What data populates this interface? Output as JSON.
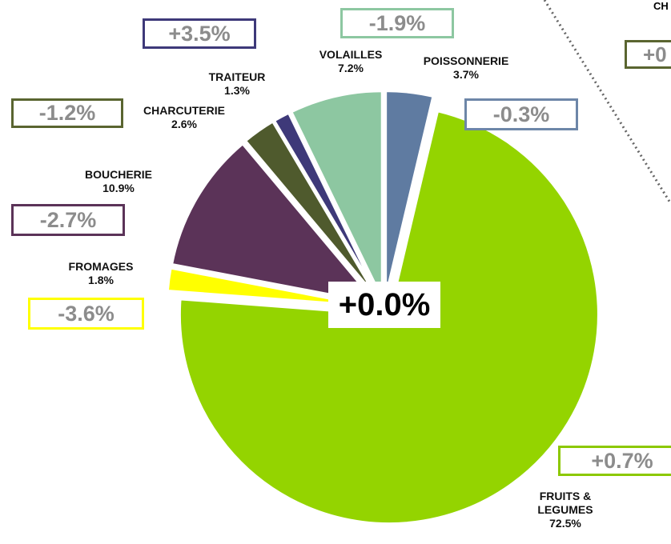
{
  "chart_data": {
    "type": "pie",
    "categories": [
      "POISSONNERIE",
      "FRUITS & LEGUMES",
      "FROMAGES",
      "BOUCHERIE",
      "CHARCUTERIE",
      "TRAITEUR",
      "VOLAILLES"
    ],
    "values": [
      3.7,
      72.5,
      1.8,
      10.9,
      2.6,
      1.3,
      7.2
    ],
    "value_labels": [
      "3.7%",
      "72.5%",
      "1.8%",
      "10.9%",
      "2.6%",
      "1.3%",
      "7.2%"
    ],
    "colors": [
      "#5f7ba1",
      "#94d400",
      "#ffff00",
      "#5b3358",
      "#4f5a2d",
      "#3e3979",
      "#8dc7a1"
    ],
    "change_labels": [
      "-0.3%",
      "+0.7%",
      "-3.6%",
      "-2.7%",
      "-1.2%",
      "+3.5%",
      "-1.9%"
    ],
    "change_border_colors": [
      "#6d86a8",
      "#8cc800",
      "#ffff00",
      "#5b3358",
      "#5a6530",
      "#3e3979",
      "#8dc7a1"
    ],
    "center_label": "+0.0%",
    "offpage_labels": [
      "CH",
      "+0"
    ]
  }
}
